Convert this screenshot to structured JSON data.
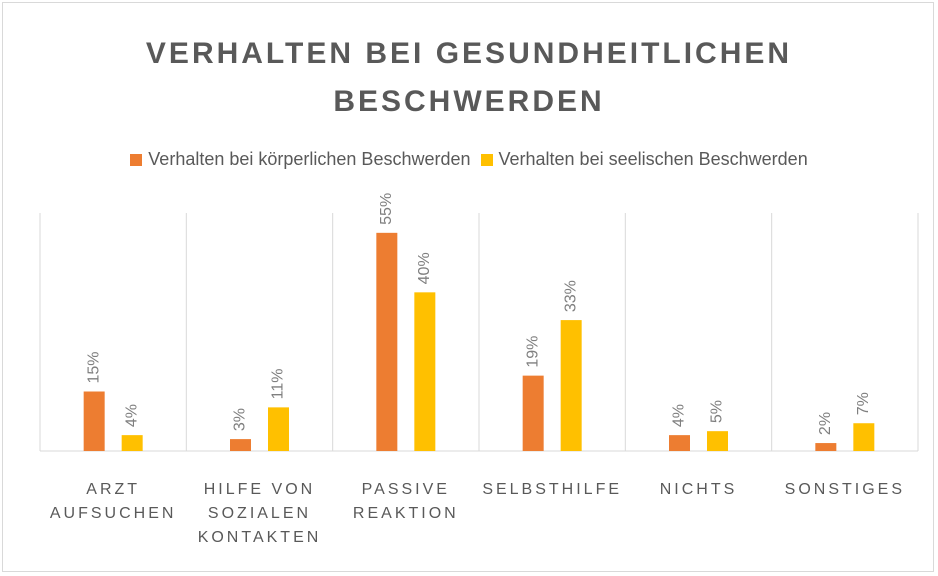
{
  "chart_data": {
    "type": "bar",
    "title": "VERHALTEN BEI GESUNDHEITLICHEN BESCHWERDEN",
    "categories": [
      "ARZT AUFSUCHEN",
      "HILFE VON SOZIALEN KONTAKTEN",
      "PASSIVE REAKTION",
      "SELBSTHILFE",
      "NICHTS",
      "SONSTIGES"
    ],
    "series": [
      {
        "name": "Verhalten bei körperlichen Beschwerden",
        "color": "#ed7d31",
        "values": [
          15,
          3,
          55,
          19,
          4,
          2
        ],
        "value_labels": [
          "15%",
          "3%",
          "55%",
          "19%",
          "4%",
          "2%"
        ]
      },
      {
        "name": "Verhalten bei seelischen Beschwerden",
        "color": "#ffc000",
        "values": [
          4,
          11,
          40,
          33,
          5,
          7
        ],
        "value_labels": [
          "4%",
          "11%",
          "40%",
          "33%",
          "5%",
          "7%"
        ]
      }
    ],
    "ylim": [
      0,
      60
    ]
  }
}
